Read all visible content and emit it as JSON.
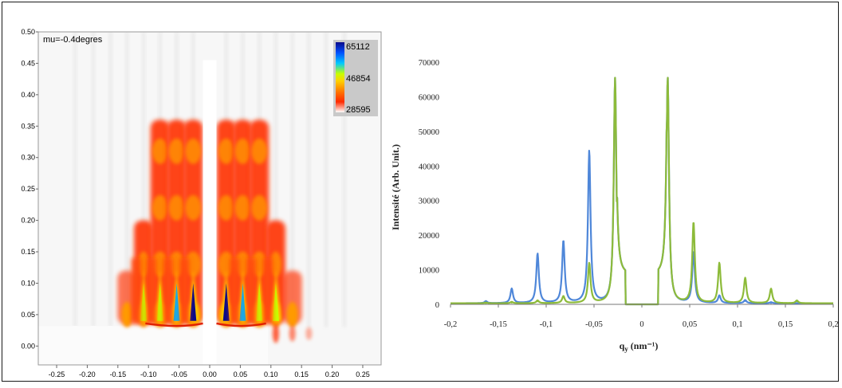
{
  "chart_data": [
    {
      "type": "heatmap",
      "annotation": "mu=-0.4degres",
      "colorbar": {
        "max_label": "65112",
        "mid_label": "46854",
        "min_label": "28595",
        "colors": [
          "#0a0a8a",
          "#00b4ff",
          "#c8ff00",
          "#ffd200",
          "#ff8c00",
          "#ff2a00",
          "#ffffff"
        ]
      },
      "xlim": [
        -0.28,
        0.28
      ],
      "ylim": [
        -0.03,
        0.5
      ],
      "x_ticks": [
        "-0.25",
        "-0.20",
        "-0.15",
        "-0.10",
        "-0.05",
        "0.00",
        "0.05",
        "0.10",
        "0.15",
        "0.20",
        "0.25"
      ],
      "y_ticks": [
        "0.00",
        "0.05",
        "0.10",
        "0.15",
        "0.20",
        "0.25",
        "0.30",
        "0.35",
        "0.40",
        "0.45",
        "0.50"
      ],
      "peak_columns_x": [
        -0.135,
        -0.108,
        -0.081,
        -0.054,
        -0.027,
        0.027,
        0.054,
        0.081,
        0.108,
        0.135
      ],
      "lobe_centers_y": [
        0.05,
        0.13,
        0.22,
        0.31
      ]
    },
    {
      "type": "line",
      "title": "",
      "xlabel": "q",
      "xlabel_sub": "y",
      "xlabel_units": " (nm⁻¹)",
      "ylabel": "Intensité (Arb. Unit.)",
      "xlim": [
        -0.2,
        0.2
      ],
      "ylim": [
        0,
        70000
      ],
      "x_ticks": [
        "-0,2",
        "-0,15",
        "-0,1",
        "-0,05",
        "0",
        "0,05",
        "0,1",
        "0,15",
        "0,2"
      ],
      "y_ticks": [
        "0",
        "10000",
        "20000",
        "30000",
        "40000",
        "50000",
        "60000",
        "70000"
      ],
      "series": [
        {
          "color": "#4f87d9",
          "peaks": [
            {
              "x": -0.163,
              "y": 600
            },
            {
              "x": -0.136,
              "y": 4200
            },
            {
              "x": -0.109,
              "y": 14300
            },
            {
              "x": -0.082,
              "y": 18000
            },
            {
              "x": -0.055,
              "y": 44000
            },
            {
              "x": -0.028,
              "y": 65500
            },
            {
              "x": 0.027,
              "y": 65500
            },
            {
              "x": 0.054,
              "y": 14800
            },
            {
              "x": 0.081,
              "y": 2200
            },
            {
              "x": 0.108,
              "y": 900
            },
            {
              "x": 0.135,
              "y": 300
            }
          ]
        },
        {
          "color": "#8dbb3a",
          "peaks": [
            {
              "x": -0.163,
              "y": 200
            },
            {
              "x": -0.136,
              "y": 400
            },
            {
              "x": -0.109,
              "y": 800
            },
            {
              "x": -0.082,
              "y": 2000
            },
            {
              "x": -0.055,
              "y": 11500
            },
            {
              "x": -0.028,
              "y": 65500
            },
            {
              "x": 0.027,
              "y": 65500
            },
            {
              "x": 0.054,
              "y": 23300
            },
            {
              "x": 0.081,
              "y": 11600
            },
            {
              "x": 0.108,
              "y": 7300
            },
            {
              "x": 0.135,
              "y": 4200
            },
            {
              "x": 0.162,
              "y": 800
            }
          ]
        }
      ]
    }
  ]
}
